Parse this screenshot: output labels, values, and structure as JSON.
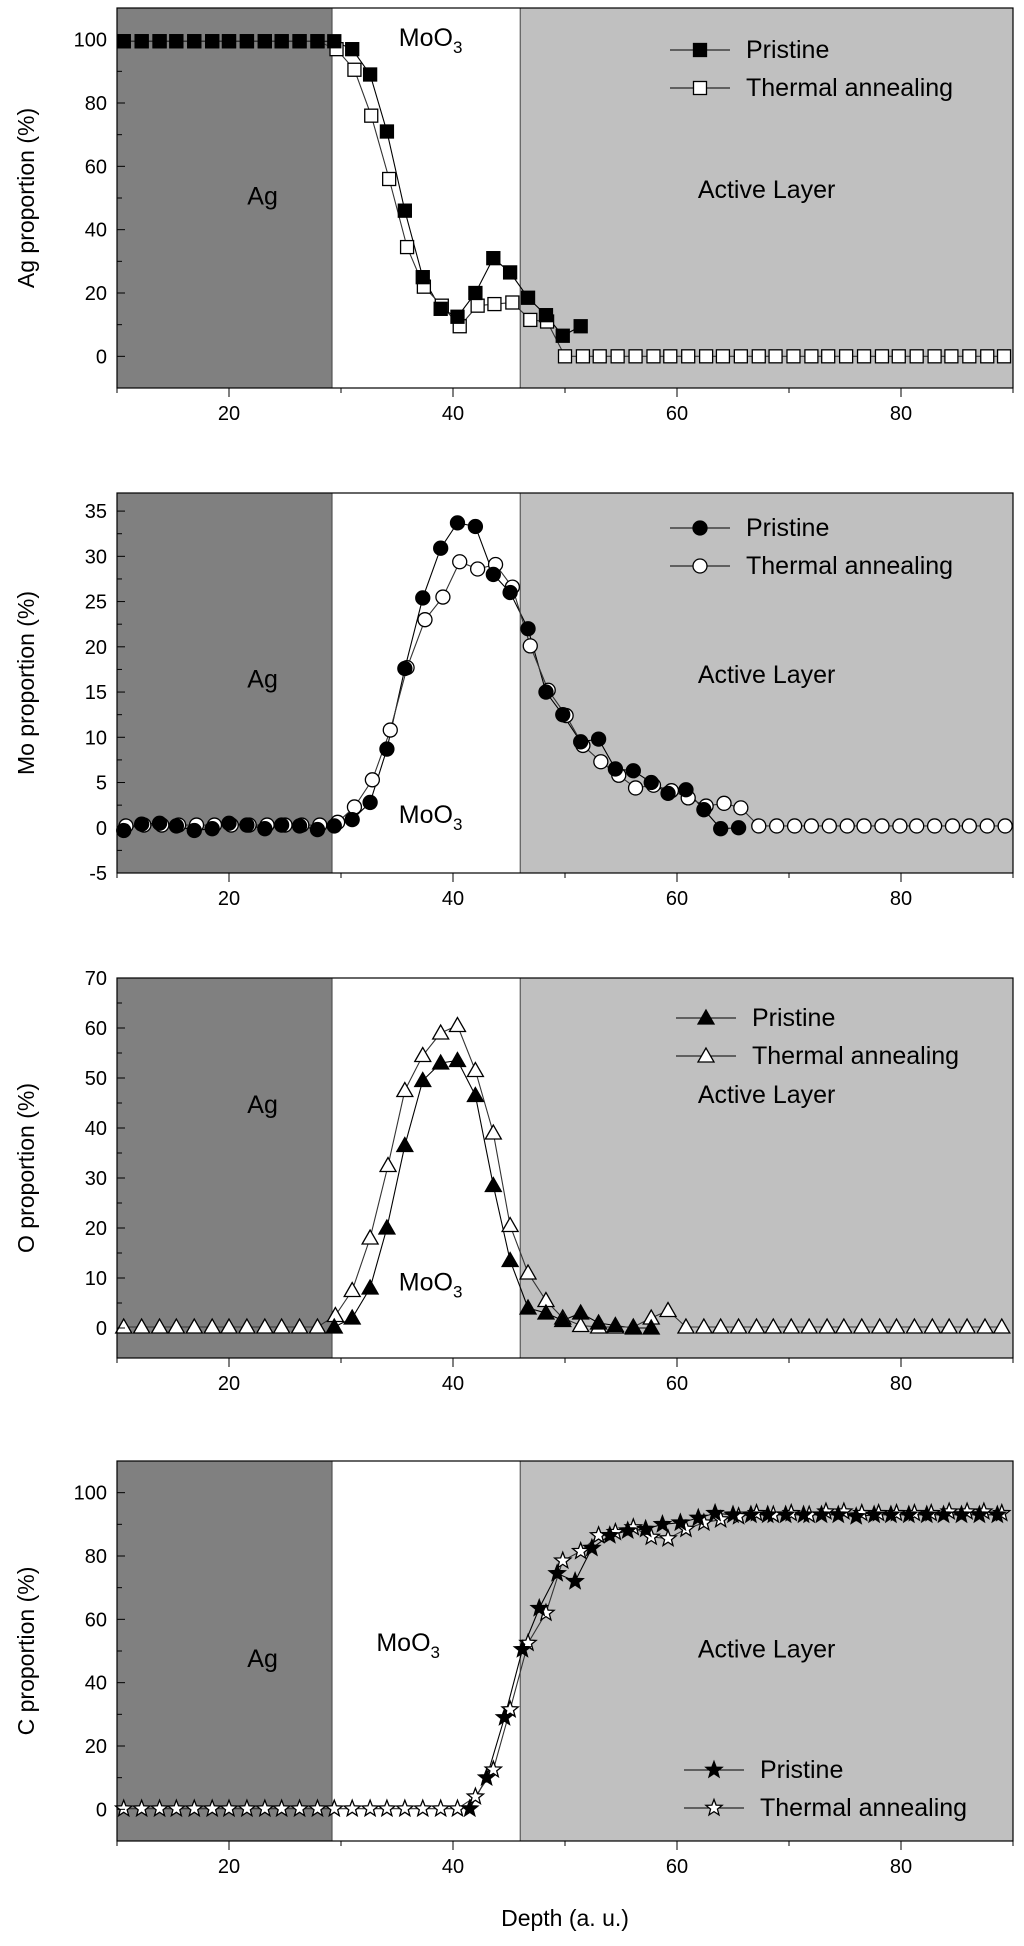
{
  "chart_data": [
    {
      "type": "scatter",
      "ylabel": "Ag proportion (%)",
      "xlabel": "",
      "xlim": [
        10,
        90
      ],
      "ylim": [
        -10,
        110
      ],
      "xticks": [
        20,
        40,
        60,
        80
      ],
      "yticks": [
        0,
        20,
        40,
        60,
        80,
        100
      ],
      "regions": [
        {
          "name": "Ag",
          "from": 10,
          "to": 29.2,
          "color": "#808080",
          "label_at": [
            23,
            48
          ]
        },
        {
          "name": "MoO3",
          "from": 29.2,
          "to": 46,
          "color": "#ffffff",
          "label_at": [
            38,
            98
          ]
        },
        {
          "name": "Active Layer",
          "from": 46,
          "to": 90,
          "color": "#c0c0c0",
          "label_at": [
            68,
            50
          ]
        }
      ],
      "legend": "top-right",
      "series": [
        {
          "name": "Pristine",
          "marker": "square",
          "filled": true,
          "x": [
            10.6,
            12.2,
            13.8,
            15.3,
            16.9,
            18.5,
            20.0,
            21.6,
            23.2,
            24.7,
            26.3,
            27.9,
            29.4,
            31.0,
            32.6,
            34.1,
            35.7,
            37.3,
            38.9,
            40.4,
            42.0,
            43.6,
            45.1,
            46.7,
            48.3,
            49.8,
            51.4
          ],
          "y": [
            99.5,
            99.5,
            99.5,
            99.5,
            99.5,
            99.5,
            99.5,
            99.5,
            99.5,
            99.5,
            99.5,
            99.5,
            99.5,
            97,
            89,
            71,
            46,
            25,
            15,
            12.5,
            20,
            31,
            26.5,
            18.5,
            13,
            6.5,
            9.5
          ]
        },
        {
          "name": "Thermal annealing",
          "marker": "square",
          "filled": false,
          "x": [
            10.6,
            12.2,
            13.8,
            15.3,
            16.9,
            18.5,
            20.0,
            21.6,
            23.2,
            24.7,
            26.3,
            27.9,
            29.6,
            31.2,
            32.7,
            34.3,
            35.9,
            37.4,
            39.0,
            40.6,
            42.2,
            43.7,
            45.3,
            46.9,
            48.4,
            50.0,
            51.6,
            53.1,
            54.7,
            56.3,
            57.9,
            59.4,
            61.0,
            62.6,
            64.1,
            65.7,
            67.3,
            68.8,
            70.4,
            72.0,
            73.5,
            75.1,
            76.7,
            78.3,
            79.8,
            81.4,
            83.0,
            84.5,
            86.1,
            87.7,
            89.2
          ],
          "y": [
            99.5,
            99.5,
            99.5,
            99.5,
            99.5,
            99.5,
            99.5,
            99.5,
            99.5,
            99.5,
            99.5,
            99.5,
            97,
            90.5,
            76,
            56,
            34.5,
            22,
            16,
            9.5,
            16,
            16.5,
            17,
            11.5,
            11,
            0,
            0,
            0,
            0,
            0,
            0,
            0,
            0,
            0,
            0,
            0,
            0,
            0,
            0,
            0,
            0,
            0,
            0,
            0,
            0,
            0,
            0,
            0,
            0,
            0,
            0
          ]
        }
      ]
    },
    {
      "type": "scatter",
      "ylabel": "Mo proportion (%)",
      "xlabel": "",
      "xlim": [
        10,
        90
      ],
      "ylim": [
        -5,
        37
      ],
      "xticks": [
        20,
        40,
        60,
        80
      ],
      "yticks": [
        -5,
        0,
        5,
        10,
        15,
        20,
        25,
        30,
        35
      ],
      "regions": [
        {
          "name": "Ag",
          "from": 10,
          "to": 29.2,
          "color": "#808080",
          "label_at": [
            23,
            15.5
          ]
        },
        {
          "name": "MoO3",
          "from": 29.2,
          "to": 46,
          "color": "#ffffff",
          "label_at": [
            38,
            0.5
          ]
        },
        {
          "name": "Active Layer",
          "from": 46,
          "to": 90,
          "color": "#c0c0c0",
          "label_at": [
            68,
            16
          ]
        }
      ],
      "legend": "top-right",
      "series": [
        {
          "name": "Pristine",
          "marker": "circle",
          "filled": true,
          "x": [
            10.6,
            12.2,
            13.8,
            15.3,
            16.9,
            18.5,
            20.0,
            21.6,
            23.2,
            24.7,
            26.3,
            27.9,
            29.4,
            31.0,
            32.6,
            34.1,
            35.7,
            37.3,
            38.9,
            40.4,
            42.0,
            43.6,
            45.1,
            46.7,
            48.3,
            49.8,
            51.4,
            53.0,
            54.5,
            56.1,
            57.7,
            59.2,
            60.8,
            62.4,
            63.9,
            65.5
          ],
          "y": [
            -0.3,
            0.4,
            0.5,
            0.2,
            -0.3,
            -0.1,
            0.5,
            0.3,
            -0.1,
            0.3,
            0.2,
            -0.2,
            0.2,
            0.9,
            2.8,
            8.7,
            17.6,
            25.4,
            30.9,
            33.7,
            33.3,
            28.0,
            26.0,
            22.0,
            15.0,
            12.5,
            9.5,
            9.8,
            6.5,
            6.3,
            5.0,
            3.8,
            4.2,
            2.0,
            -0.1,
            0.0
          ]
        },
        {
          "name": "Thermal annealing",
          "marker": "circle",
          "filled": false,
          "x": [
            10.8,
            12.4,
            14.0,
            15.5,
            17.1,
            18.7,
            20.2,
            21.8,
            23.4,
            25.0,
            26.5,
            28.1,
            29.7,
            31.2,
            32.8,
            34.4,
            35.9,
            37.5,
            39.1,
            40.6,
            42.2,
            43.8,
            45.3,
            46.9,
            48.5,
            50.1,
            51.6,
            53.2,
            54.8,
            56.3,
            57.9,
            59.5,
            61.0,
            62.6,
            64.2,
            65.7,
            67.3,
            68.9,
            70.5,
            72.0,
            73.6,
            75.2,
            76.7,
            78.3,
            79.9,
            81.4,
            83.0,
            84.6,
            86.1,
            87.7,
            89.3
          ],
          "y": [
            0.2,
            0.3,
            0.3,
            0.3,
            0.3,
            0.3,
            0.3,
            0.3,
            0.3,
            0.3,
            0.3,
            0.3,
            0.6,
            2.3,
            5.3,
            10.8,
            17.7,
            23.0,
            25.5,
            29.4,
            28.6,
            29.1,
            26.6,
            20.1,
            15.2,
            12.4,
            9.1,
            7.3,
            5.8,
            4.4,
            4.7,
            4.1,
            3.3,
            2.4,
            2.7,
            2.2,
            0.2,
            0.2,
            0.2,
            0.2,
            0.2,
            0.2,
            0.2,
            0.2,
            0.2,
            0.2,
            0.2,
            0.2,
            0.2,
            0.2,
            0.2
          ]
        }
      ]
    },
    {
      "type": "scatter",
      "ylabel": "O proportion (%)",
      "xlabel": "",
      "xlim": [
        10,
        90
      ],
      "ylim": [
        -6,
        70
      ],
      "xticks": [
        20,
        40,
        60,
        80
      ],
      "yticks": [
        0,
        10,
        20,
        30,
        40,
        50,
        60,
        70
      ],
      "regions": [
        {
          "name": "Ag",
          "from": 10,
          "to": 29.2,
          "color": "#808080",
          "label_at": [
            23,
            43
          ]
        },
        {
          "name": "MoO3",
          "from": 29.2,
          "to": 46,
          "color": "#ffffff",
          "label_at": [
            38,
            7.5
          ]
        },
        {
          "name": "Active Layer",
          "from": 46,
          "to": 90,
          "color": "#c0c0c0",
          "label_at": [
            68,
            45
          ]
        }
      ],
      "legend": "top-right",
      "series": [
        {
          "name": "Pristine",
          "marker": "triangle",
          "filled": true,
          "x": [
            29.4,
            31.0,
            32.6,
            34.1,
            35.7,
            37.3,
            38.9,
            40.4,
            42.0,
            43.6,
            45.1,
            46.7,
            48.3,
            49.8,
            51.4,
            53.0,
            54.5,
            56.1,
            57.7
          ],
          "y": [
            0.2,
            2.0,
            8.0,
            20.0,
            36.5,
            49.5,
            53.0,
            53.5,
            46.5,
            28.5,
            13.5,
            4.0,
            3.0,
            1.5,
            3.0,
            1.0,
            0.5,
            0.0,
            0.0
          ]
        },
        {
          "name": "Thermal annealing",
          "marker": "triangle",
          "filled": false,
          "x": [
            10.6,
            12.2,
            13.8,
            15.3,
            16.9,
            18.5,
            20.0,
            21.6,
            23.2,
            24.7,
            26.3,
            27.9,
            29.5,
            31.0,
            32.6,
            34.2,
            35.7,
            37.3,
            38.9,
            40.4,
            42.0,
            43.6,
            45.1,
            46.7,
            48.3,
            49.8,
            51.4,
            53.0,
            54.5,
            56.1,
            57.7,
            59.2,
            60.8,
            62.4,
            63.9,
            65.5,
            67.1,
            68.6,
            70.2,
            71.8,
            73.4,
            74.9,
            76.5,
            78.1,
            79.6,
            81.2,
            82.8,
            84.3,
            85.9,
            87.5,
            89.0
          ],
          "y": [
            0.2,
            0.2,
            0.2,
            0.2,
            0.2,
            0.2,
            0.2,
            0.2,
            0.2,
            0.2,
            0.2,
            0.2,
            2.5,
            7.5,
            18.0,
            32.5,
            47.5,
            54.5,
            59.0,
            60.5,
            51.5,
            39.0,
            20.5,
            11.0,
            5.5,
            2.0,
            0.5,
            0.2,
            0.2,
            0.2,
            2.0,
            3.5,
            0.2,
            0.2,
            0.2,
            0.2,
            0.2,
            0.2,
            0.2,
            0.2,
            0.2,
            0.2,
            0.2,
            0.2,
            0.2,
            0.2,
            0.2,
            0.2,
            0.2,
            0.2,
            0.2
          ]
        }
      ]
    },
    {
      "type": "scatter",
      "ylabel": "C proportion (%)",
      "xlabel": "Depth (a. u.)",
      "xlim": [
        10,
        90
      ],
      "ylim": [
        -10,
        110
      ],
      "xticks": [
        20,
        40,
        60,
        80
      ],
      "yticks": [
        0,
        20,
        40,
        60,
        80,
        100
      ],
      "regions": [
        {
          "name": "Ag",
          "from": 10,
          "to": 29.2,
          "color": "#808080",
          "label_at": [
            23,
            45
          ]
        },
        {
          "name": "MoO3",
          "from": 29.2,
          "to": 46,
          "color": "#ffffff",
          "label_at": [
            36,
            50
          ]
        },
        {
          "name": "Active Layer",
          "from": 46,
          "to": 90,
          "color": "#c0c0c0",
          "label_at": [
            68,
            48
          ]
        }
      ],
      "legend": "bottom-right",
      "series": [
        {
          "name": "Pristine",
          "marker": "star",
          "filled": true,
          "x": [
            41.5,
            43.0,
            44.6,
            46.2,
            47.7,
            49.3,
            50.9,
            52.4,
            54.0,
            55.6,
            57.2,
            58.7,
            60.3,
            61.9,
            63.4,
            65.0,
            66.6,
            68.1,
            69.7,
            71.3,
            72.9,
            74.4,
            76.0,
            77.6,
            79.1,
            80.7,
            82.3,
            83.8,
            85.4,
            87.0,
            88.6
          ],
          "y": [
            0.2,
            10.0,
            29.0,
            50.5,
            63.5,
            74.5,
            72.0,
            82.5,
            86.5,
            88.0,
            88.5,
            90.0,
            90.5,
            92.0,
            93.5,
            93.0,
            93.0,
            93.0,
            93.0,
            93.0,
            93.0,
            93.0,
            92.5,
            93.0,
            93.0,
            93.0,
            93.0,
            93.0,
            93.0,
            93.0,
            93.0
          ]
        },
        {
          "name": "Thermal annealing",
          "marker": "star",
          "filled": false,
          "x": [
            10.6,
            12.2,
            13.8,
            15.3,
            16.9,
            18.5,
            20.0,
            21.6,
            23.2,
            24.7,
            26.3,
            27.9,
            29.4,
            31.0,
            32.6,
            34.1,
            35.7,
            37.3,
            38.9,
            40.4,
            42.0,
            43.6,
            45.1,
            46.7,
            48.3,
            49.8,
            51.4,
            53.0,
            54.5,
            56.1,
            57.7,
            59.2,
            60.8,
            62.4,
            63.9,
            65.5,
            67.1,
            68.6,
            70.2,
            71.8,
            73.3,
            74.9,
            76.5,
            78.0,
            79.6,
            81.2,
            82.7,
            84.3,
            85.9,
            87.4,
            89.0
          ],
          "y": [
            0.2,
            0.2,
            0.2,
            0.2,
            0.2,
            0.2,
            0.2,
            0.2,
            0.2,
            0.2,
            0.2,
            0.2,
            0.2,
            0.2,
            0.2,
            0.2,
            0.2,
            0.2,
            0.2,
            0.2,
            4.0,
            12.5,
            31.5,
            52.5,
            62.0,
            78.5,
            81.5,
            86.5,
            87.5,
            89.0,
            86.0,
            85.5,
            88.5,
            90.5,
            91.5,
            92.5,
            93.5,
            93.0,
            93.5,
            93.0,
            94.0,
            94.0,
            93.5,
            93.5,
            93.5,
            93.5,
            93.5,
            94.0,
            94.0,
            94.0,
            93.5
          ]
        }
      ]
    }
  ]
}
